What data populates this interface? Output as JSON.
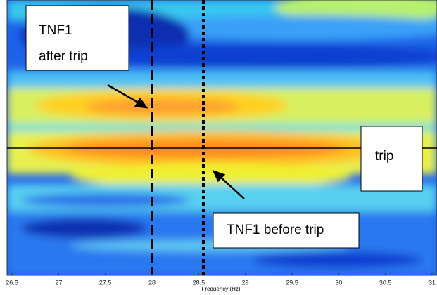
{
  "chart_data": {
    "type": "contour",
    "xlabel": "Frequency (Hz)",
    "xlim": [
      26.5,
      31
    ],
    "xticks": [
      26.5,
      27,
      27.5,
      28,
      28.5,
      29,
      29.5,
      30,
      30.5,
      31
    ],
    "vlines": [
      {
        "x": 28,
        "style": "dashed",
        "color": "#000000"
      },
      {
        "x": 28.55,
        "style": "dotted",
        "color": "#000000"
      }
    ],
    "annotations": [
      {
        "lines": [
          "TNF1",
          "after trip"
        ]
      },
      {
        "lines": [
          "trip"
        ]
      },
      {
        "lines": [
          "TNF1 before trip"
        ]
      }
    ]
  }
}
